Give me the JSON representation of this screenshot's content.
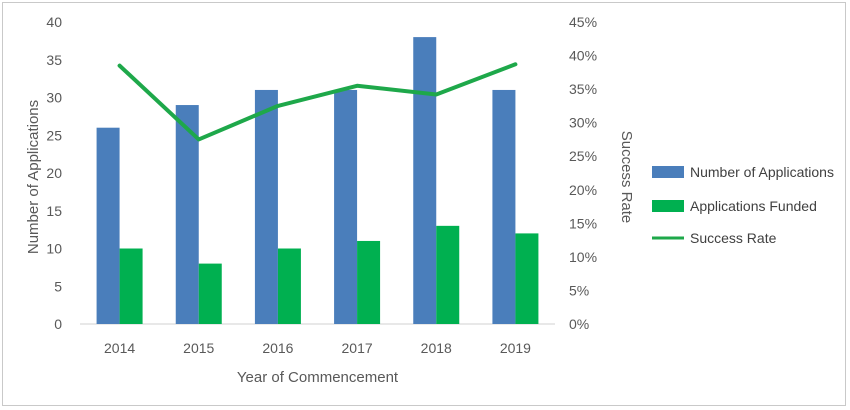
{
  "chart_data": {
    "type": "bar",
    "categories": [
      "2014",
      "2015",
      "2016",
      "2017",
      "2018",
      "2019"
    ],
    "series": [
      {
        "name": "Number of Applications",
        "type": "bar",
        "axis": "left",
        "values": [
          26,
          29,
          31,
          31,
          38,
          31
        ]
      },
      {
        "name": "Applications Funded",
        "type": "bar",
        "axis": "left",
        "values": [
          10,
          8,
          10,
          11,
          13,
          12
        ]
      },
      {
        "name": "Success Rate",
        "type": "line",
        "axis": "right",
        "values": [
          38.5,
          27.5,
          32.5,
          35.5,
          34.2,
          38.7
        ]
      }
    ],
    "xlabel": "Year of Commencement",
    "ylabel": "Number of Applications",
    "y2label": "Success Rate",
    "ylim": [
      0,
      40
    ],
    "y2lim": [
      0,
      45
    ],
    "yticks": [
      "0",
      "5",
      "10",
      "15",
      "20",
      "25",
      "30",
      "35",
      "40"
    ],
    "y2ticks": [
      "0%",
      "5%",
      "10%",
      "15%",
      "20%",
      "25%",
      "30%",
      "35%",
      "40%",
      "45%"
    ],
    "grid": false,
    "legend_position": "right",
    "colors": {
      "Number of Applications": "#4a7ebb",
      "Applications Funded": "#00b050",
      "Success Rate": "#1ea84a"
    }
  }
}
